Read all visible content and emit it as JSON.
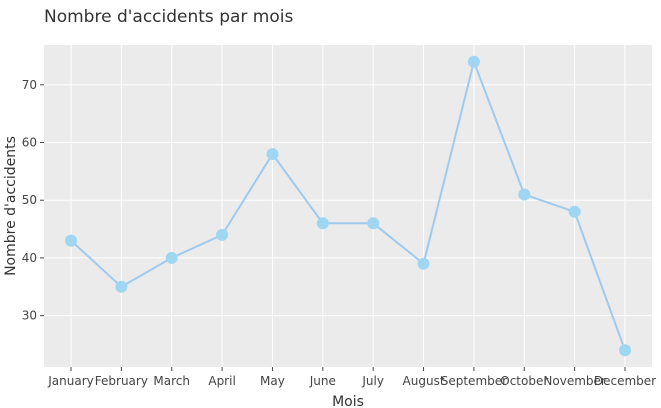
{
  "chart_data": {
    "type": "line",
    "title": "Nombre d'accidents par mois",
    "xlabel": "Mois",
    "ylabel": "Nombre d'accidents",
    "categories": [
      "January",
      "February",
      "March",
      "April",
      "May",
      "June",
      "July",
      "August",
      "September",
      "October",
      "November",
      "December"
    ],
    "series": [
      {
        "values": [
          43,
          35,
          40,
          44,
          58,
          46,
          46,
          39,
          74,
          51,
          48,
          24
        ]
      }
    ],
    "yticks": [
      30,
      40,
      50,
      60,
      70
    ],
    "ylim": [
      21.1,
      76.9
    ],
    "grid": true,
    "colors": {
      "line": "#9fcaf0",
      "marker": "#9fd6f2",
      "panel": "#ebebeb",
      "grid": "#ffffff"
    }
  }
}
